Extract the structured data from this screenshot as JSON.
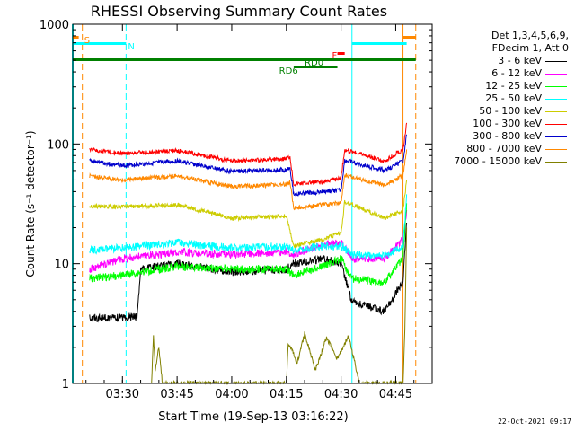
{
  "chart_data": {
    "type": "line",
    "title": "RHESSI Observing Summary Count Rates",
    "xlabel": "Start Time (19-Sep-13 03:16:22)",
    "ylabel": "Count Rate (s⁻¹ detector⁻¹)",
    "yscale": "log",
    "ylim": [
      1,
      1000
    ],
    "y_ticks": [
      "1",
      "10",
      "100",
      "1000"
    ],
    "xlim": [
      "03:16:22",
      "04:55:00"
    ],
    "x_ticks": [
      "03:30",
      "03:45",
      "04:00",
      "04:15",
      "04:30",
      "04:45"
    ],
    "legend_header": [
      "Det 1,3,4,5,6,9,",
      "FDecim 1, Att 0"
    ],
    "legend_placement": "right",
    "series": [
      {
        "name": "3 - 6 keV",
        "color": "#000000",
        "points": [
          [
            "03:21",
            3.5
          ],
          [
            "03:34",
            3.6
          ],
          [
            "03:35",
            9
          ],
          [
            "03:45",
            10
          ],
          [
            "04:00",
            8.5
          ],
          [
            "04:15",
            9
          ],
          [
            "04:17",
            10
          ],
          [
            "04:25",
            11
          ],
          [
            "04:30",
            10
          ],
          [
            "04:33",
            4.8
          ],
          [
            "04:42",
            4
          ],
          [
            "04:47",
            7
          ],
          [
            "04:48",
            22
          ]
        ]
      },
      {
        "name": "6 - 12 keV",
        "color": "#ff00ff",
        "points": [
          [
            "03:21",
            9
          ],
          [
            "03:30",
            11
          ],
          [
            "03:45",
            12.5
          ],
          [
            "04:00",
            12
          ],
          [
            "04:15",
            12.5
          ],
          [
            "04:17",
            12
          ],
          [
            "04:25",
            14.5
          ],
          [
            "04:30",
            15
          ],
          [
            "04:33",
            11
          ],
          [
            "04:42",
            11
          ],
          [
            "04:47",
            16
          ],
          [
            "04:48",
            28
          ]
        ]
      },
      {
        "name": "12 - 25 keV",
        "color": "#00ff00",
        "points": [
          [
            "03:21",
            7.5
          ],
          [
            "03:30",
            8
          ],
          [
            "03:45",
            9.5
          ],
          [
            "04:00",
            9
          ],
          [
            "04:15",
            9
          ],
          [
            "04:17",
            8
          ],
          [
            "04:25",
            9.5
          ],
          [
            "04:30",
            11
          ],
          [
            "04:33",
            7.5
          ],
          [
            "04:42",
            7
          ],
          [
            "04:47",
            11
          ],
          [
            "04:48",
            32
          ]
        ]
      },
      {
        "name": "25 - 50 keV",
        "color": "#00ffff",
        "points": [
          [
            "03:21",
            13
          ],
          [
            "03:30",
            13.5
          ],
          [
            "03:45",
            15
          ],
          [
            "04:00",
            13.5
          ],
          [
            "04:15",
            14
          ],
          [
            "04:17",
            13
          ],
          [
            "04:25",
            14
          ],
          [
            "04:30",
            14
          ],
          [
            "04:33",
            12
          ],
          [
            "04:42",
            11.5
          ],
          [
            "04:47",
            14
          ],
          [
            "04:48",
            38
          ]
        ]
      },
      {
        "name": "50 - 100 keV",
        "color": "#cccc00",
        "points": [
          [
            "03:21",
            30
          ],
          [
            "03:30",
            30
          ],
          [
            "03:45",
            31
          ],
          [
            "04:00",
            24
          ],
          [
            "04:15",
            25
          ],
          [
            "04:17",
            14
          ],
          [
            "04:25",
            16
          ],
          [
            "04:30",
            18
          ],
          [
            "04:31",
            33
          ],
          [
            "04:42",
            24
          ],
          [
            "04:47",
            28
          ],
          [
            "04:48",
            50
          ]
        ]
      },
      {
        "name": "100 - 300 keV",
        "color": "#ff0000",
        "points": [
          [
            "03:21",
            90
          ],
          [
            "03:30",
            83
          ],
          [
            "03:45",
            88
          ],
          [
            "04:00",
            72
          ],
          [
            "04:15",
            75
          ],
          [
            "04:16",
            78
          ],
          [
            "04:17",
            46
          ],
          [
            "04:25",
            48
          ],
          [
            "04:30",
            52
          ],
          [
            "04:31",
            90
          ],
          [
            "04:42",
            72
          ],
          [
            "04:47",
            90
          ],
          [
            "04:48",
            150
          ]
        ]
      },
      {
        "name": "300 - 800 keV",
        "color": "#0000cc",
        "points": [
          [
            "03:21",
            72
          ],
          [
            "03:30",
            66
          ],
          [
            "03:45",
            72
          ],
          [
            "04:00",
            59
          ],
          [
            "04:15",
            61
          ],
          [
            "04:16",
            64
          ],
          [
            "04:17",
            38
          ],
          [
            "04:25",
            40
          ],
          [
            "04:30",
            41
          ],
          [
            "04:31",
            73
          ],
          [
            "04:42",
            60
          ],
          [
            "04:47",
            72
          ],
          [
            "04:48",
            120
          ]
        ]
      },
      {
        "name": "800 - 7000 keV",
        "color": "#ff8800",
        "points": [
          [
            "03:21",
            54
          ],
          [
            "03:30",
            50
          ],
          [
            "03:45",
            54
          ],
          [
            "04:00",
            44
          ],
          [
            "04:15",
            46
          ],
          [
            "04:16",
            48
          ],
          [
            "04:17",
            29
          ],
          [
            "04:25",
            31
          ],
          [
            "04:30",
            32
          ],
          [
            "04:31",
            55
          ],
          [
            "04:42",
            45
          ],
          [
            "04:47",
            55
          ],
          [
            "04:48",
            90
          ]
        ]
      },
      {
        "name": "7000 - 15000 keV",
        "color": "#808000",
        "points": [
          [
            "03:38",
            1
          ],
          [
            "03:38.5",
            2.5
          ],
          [
            "03:39",
            1.3
          ],
          [
            "03:40",
            2.0
          ],
          [
            "03:41",
            1
          ],
          [
            "04:15",
            1
          ],
          [
            "04:15.5",
            2.2
          ],
          [
            "04:18",
            1.5
          ],
          [
            "04:20",
            2.6
          ],
          [
            "04:23",
            1.3
          ],
          [
            "04:26",
            2.4
          ],
          [
            "04:29",
            1.6
          ],
          [
            "04:32",
            2.5
          ],
          [
            "04:34",
            1.4
          ],
          [
            "04:35",
            1
          ],
          [
            "04:47",
            1
          ],
          [
            "04:47.5",
            2.8
          ],
          [
            "04:48",
            20
          ]
        ]
      }
    ],
    "annotations": [
      {
        "label": "S",
        "color": "#ff8800"
      },
      {
        "label": "N",
        "color": "#00ffff"
      },
      {
        "label": "RD0",
        "color": "#008000"
      },
      {
        "label": "RD6",
        "color": "#008000"
      },
      {
        "label": "F",
        "color": "#ff0000"
      }
    ],
    "timestamp": "22-Oct-2021 09:17"
  }
}
